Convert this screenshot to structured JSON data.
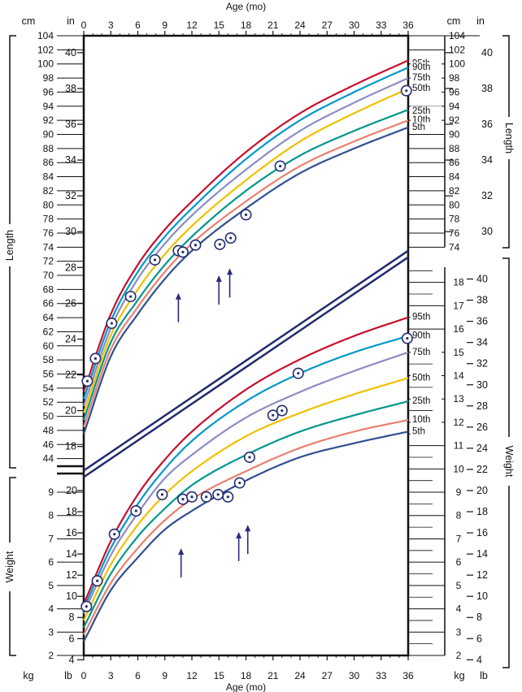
{
  "chart_data": {
    "type": "line",
    "xlabel": "Age (mo)",
    "x_ticks": [
      0,
      3,
      6,
      9,
      12,
      15,
      18,
      21,
      24,
      27,
      30,
      33,
      36
    ],
    "xlim": [
      0,
      36
    ],
    "grid": false,
    "length": {
      "label": "Length",
      "unit_left": "cm",
      "unit_inch": "in",
      "ylim_cm": [
        42,
        104
      ],
      "cm_ticks": [
        44,
        46,
        48,
        50,
        52,
        54,
        56,
        58,
        60,
        62,
        64,
        66,
        68,
        70,
        72,
        74,
        76,
        78,
        80,
        82,
        84,
        86,
        88,
        90,
        92,
        94,
        96,
        98,
        100,
        102,
        104
      ],
      "in_ticks": [
        18,
        20,
        22,
        24,
        26,
        28,
        30,
        32,
        34,
        36,
        38,
        40
      ],
      "right_cm_ticks": [
        74,
        76,
        78,
        80,
        82,
        84,
        86,
        88,
        90,
        92,
        94,
        96,
        98,
        100,
        102,
        104
      ],
      "right_in_ticks": [
        30,
        32,
        34,
        36,
        38,
        40
      ],
      "percentiles": [
        {
          "name": "95th",
          "color": "#c8102e",
          "x": [
            0,
            3,
            6,
            9,
            12,
            18,
            24,
            30,
            36
          ],
          "y": [
            53.5,
            64.5,
            71.5,
            76.5,
            80.5,
            87.5,
            93,
            97,
            100.5
          ]
        },
        {
          "name": "90th",
          "color": "#0098c8",
          "x": [
            0,
            3,
            6,
            9,
            12,
            18,
            24,
            30,
            36
          ],
          "y": [
            52.5,
            63.5,
            70.5,
            75.5,
            79.5,
            86.5,
            92,
            96,
            99.5
          ]
        },
        {
          "name": "75th",
          "color": "#8c8cc4",
          "x": [
            0,
            3,
            6,
            9,
            12,
            18,
            24,
            30,
            36
          ],
          "y": [
            51.5,
            62.5,
            69.5,
            74.5,
            78.5,
            85,
            90.5,
            94.5,
            98
          ]
        },
        {
          "name": "50th",
          "color": "#f0c000",
          "x": [
            0,
            3,
            6,
            9,
            12,
            18,
            24,
            30,
            36
          ],
          "y": [
            50.5,
            61.5,
            68,
            73,
            77,
            83.5,
            89,
            93,
            96.5
          ]
        },
        {
          "name": "25th",
          "color": "#00968c",
          "x": [
            0,
            3,
            6,
            9,
            12,
            18,
            24,
            30,
            36
          ],
          "y": [
            49.5,
            60.5,
            66.5,
            71.5,
            75.5,
            82,
            87,
            90.5,
            93.5
          ]
        },
        {
          "name": "10th",
          "color": "#e88070",
          "x": [
            0,
            3,
            6,
            9,
            12,
            18,
            24,
            30,
            36
          ],
          "y": [
            48.5,
            59.5,
            65.5,
            70.5,
            74.5,
            80.5,
            85.5,
            89,
            92
          ]
        },
        {
          "name": "5th",
          "color": "#2f5090",
          "x": [
            0,
            3,
            6,
            9,
            12,
            18,
            24,
            30,
            36
          ],
          "y": [
            47.5,
            58.5,
            64.5,
            69.5,
            73.5,
            79.5,
            84.5,
            88,
            91
          ]
        }
      ],
      "points": [
        {
          "x": 0.4,
          "y": 55
        },
        {
          "x": 1.3,
          "y": 58.2
        },
        {
          "x": 3.1,
          "y": 63.2
        },
        {
          "x": 5.2,
          "y": 67
        },
        {
          "x": 7.9,
          "y": 72.2
        },
        {
          "x": 10.5,
          "y": 73.5
        },
        {
          "x": 11,
          "y": 73.3
        },
        {
          "x": 12.4,
          "y": 74.3
        },
        {
          "x": 15.1,
          "y": 74.4
        },
        {
          "x": 16.3,
          "y": 75.3
        },
        {
          "x": 18,
          "y": 78.6
        },
        {
          "x": 21.8,
          "y": 85.5
        },
        {
          "x": 35.8,
          "y": 96.2
        }
      ]
    },
    "weight": {
      "label": "Weight",
      "unit_left": "kg",
      "unit_lb": "lb",
      "ylim_kg": [
        2,
        18.65
      ],
      "kg_ticks": [
        2,
        3,
        4,
        5,
        6,
        7,
        8,
        9,
        10,
        11,
        12,
        13,
        14,
        15,
        16,
        17,
        18
      ],
      "lb_ticks": [
        4,
        6,
        8,
        10,
        12,
        14,
        16,
        18,
        20,
        22,
        24,
        26,
        28,
        30,
        32,
        34,
        36,
        38,
        40
      ],
      "left_kg_ticks": [
        2,
        3,
        4,
        5,
        6,
        7,
        8,
        9
      ],
      "left_lb_ticks": [
        4,
        6,
        8,
        10,
        12,
        14,
        16,
        18,
        20
      ],
      "percentiles": [
        {
          "name": "95th",
          "color": "#c8102e",
          "x": [
            0,
            3,
            6,
            9,
            12,
            18,
            24,
            30,
            36
          ],
          "y": [
            4.2,
            6.9,
            8.9,
            10.4,
            11.6,
            13.4,
            14.7,
            15.7,
            16.5
          ]
        },
        {
          "name": "90th",
          "color": "#0098c8",
          "x": [
            0,
            3,
            6,
            9,
            12,
            18,
            24,
            30,
            36
          ],
          "y": [
            4,
            6.6,
            8.5,
            10,
            11.2,
            12.9,
            14.1,
            15,
            15.7
          ]
        },
        {
          "name": "75th",
          "color": "#8c8cc4",
          "x": [
            0,
            3,
            6,
            9,
            12,
            18,
            24,
            30,
            36
          ],
          "y": [
            3.8,
            6.3,
            8.1,
            9.6,
            10.6,
            12.2,
            13.3,
            14.2,
            15
          ]
        },
        {
          "name": "50th",
          "color": "#f0c000",
          "x": [
            0,
            3,
            6,
            9,
            12,
            18,
            24,
            30,
            36
          ],
          "y": [
            3.5,
            5.9,
            7.6,
            8.9,
            9.9,
            11.4,
            12.4,
            13.2,
            13.9
          ]
        },
        {
          "name": "25th",
          "color": "#00968c",
          "x": [
            0,
            3,
            6,
            9,
            12,
            18,
            24,
            30,
            36
          ],
          "y": [
            3.2,
            5.5,
            7.1,
            8.3,
            9.3,
            10.6,
            11.6,
            12.3,
            12.9
          ]
        },
        {
          "name": "10th",
          "color": "#e88070",
          "x": [
            0,
            3,
            6,
            9,
            12,
            18,
            24,
            30,
            36
          ],
          "y": [
            2.9,
            5.1,
            6.6,
            7.8,
            8.7,
            9.9,
            10.9,
            11.6,
            12.1
          ]
        },
        {
          "name": "5th",
          "color": "#2f5090",
          "x": [
            0,
            3,
            6,
            9,
            12,
            18,
            24,
            30,
            36
          ],
          "y": [
            2.6,
            4.8,
            6.2,
            7.4,
            8.2,
            9.5,
            10.5,
            11.1,
            11.6
          ]
        }
      ],
      "points": [
        {
          "x": 0.3,
          "y": 4.1
        },
        {
          "x": 1.5,
          "y": 5.2
        },
        {
          "x": 3.4,
          "y": 7.2
        },
        {
          "x": 5.8,
          "y": 8.2
        },
        {
          "x": 8.7,
          "y": 8.9
        },
        {
          "x": 11,
          "y": 8.7
        },
        {
          "x": 12,
          "y": 8.8
        },
        {
          "x": 13.6,
          "y": 8.8
        },
        {
          "x": 14.9,
          "y": 8.9
        },
        {
          "x": 16,
          "y": 8.8
        },
        {
          "x": 17.3,
          "y": 9.4
        },
        {
          "x": 18.4,
          "y": 10.5
        },
        {
          "x": 21,
          "y": 12.3
        },
        {
          "x": 22,
          "y": 12.5
        },
        {
          "x": 23.8,
          "y": 14.1
        },
        {
          "x": 35.9,
          "y": 15.6
        }
      ]
    },
    "arrows": [
      {
        "panel": "length",
        "x": 10.5,
        "y": 67.5
      },
      {
        "panel": "length",
        "x": 15,
        "y": 70
      },
      {
        "panel": "length",
        "x": 16.2,
        "y": 71
      },
      {
        "panel": "weight",
        "x": 10.8,
        "y": 6.6
      },
      {
        "panel": "weight",
        "x": 17.2,
        "y": 7.3
      },
      {
        "panel": "weight",
        "x": 18.2,
        "y": 7.6
      }
    ],
    "diagonal_band": [
      {
        "x": 0,
        "y": 42.3
      },
      {
        "x": 36,
        "y": 73.5
      }
    ]
  }
}
